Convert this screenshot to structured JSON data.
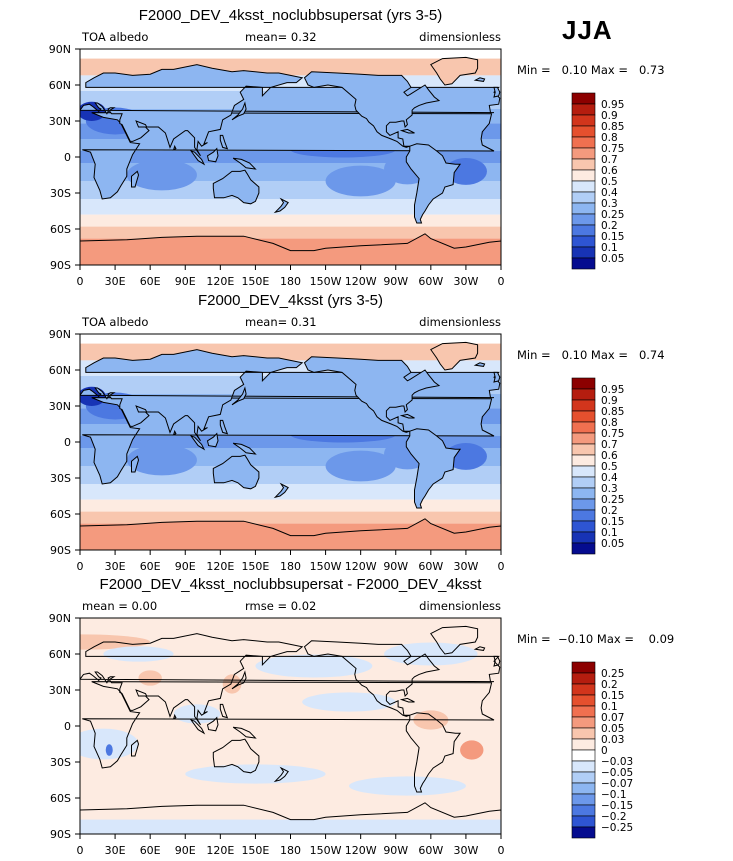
{
  "season_label": "JJA",
  "panels": [
    {
      "title": "F2000_DEV_4ksst_noclubbsupersat (yrs 3-5)",
      "left_label": "TOA albedo",
      "middle_label": "mean=    0.32",
      "right_label": "dimensionless",
      "minmax": "Min =   0.10 Max =   0.73",
      "colorbar_labels": [
        "0.95",
        "0.9",
        "0.85",
        "0.8",
        "0.75",
        "0.7",
        "0.6",
        "0.5",
        "0.4",
        "0.3",
        "0.25",
        "0.2",
        "0.15",
        "0.1",
        "0.05"
      ],
      "colorbar_colors": [
        "#8c0000",
        "#b51d0f",
        "#d2351c",
        "#e5502e",
        "#f07050",
        "#f49a7e",
        "#f8c6ae",
        "#fdebe1",
        "#d8e7fb",
        "#b1cef6",
        "#8db6f1",
        "#6c98ea",
        "#4c78e1",
        "#2e55d3",
        "#1733b5",
        "#050c8f"
      ]
    },
    {
      "title": "F2000_DEV_4ksst (yrs 3-5)",
      "left_label": "TOA albedo",
      "middle_label": "mean=    0.31",
      "right_label": "dimensionless",
      "minmax": "Min =   0.10 Max =   0.74",
      "colorbar_labels": [
        "0.95",
        "0.9",
        "0.85",
        "0.8",
        "0.75",
        "0.7",
        "0.6",
        "0.5",
        "0.4",
        "0.3",
        "0.25",
        "0.2",
        "0.15",
        "0.1",
        "0.05"
      ],
      "colorbar_colors": [
        "#8c0000",
        "#b51d0f",
        "#d2351c",
        "#e5502e",
        "#f07050",
        "#f49a7e",
        "#f8c6ae",
        "#fdebe1",
        "#d8e7fb",
        "#b1cef6",
        "#8db6f1",
        "#6c98ea",
        "#4c78e1",
        "#2e55d3",
        "#1733b5",
        "#050c8f"
      ]
    },
    {
      "title": "F2000_DEV_4ksst_noclubbsupersat - F2000_DEV_4ksst",
      "left_label": "mean =    0.00",
      "middle_label": "rmse =    0.02",
      "right_label": "dimensionless",
      "minmax": "Min =  −0.10 Max =    0.09",
      "colorbar_labels": [
        "0.25",
        "0.2",
        "0.15",
        "0.1",
        "0.07",
        "0.05",
        "0.03",
        "0",
        "−0.03",
        "−0.05",
        "−0.07",
        "−0.1",
        "−0.15",
        "−0.2",
        "−0.25"
      ],
      "colorbar_colors": [
        "#8c0000",
        "#b51d0f",
        "#d2351c",
        "#e5502e",
        "#f07050",
        "#f49a7e",
        "#f8c6ae",
        "#fdebe1",
        "#ffffff",
        "#d8e7fb",
        "#b1cef6",
        "#8db6f1",
        "#6c98ea",
        "#4c78e1",
        "#2e55d3",
        "#050c8f"
      ]
    }
  ],
  "x_ticks": [
    "0",
    "30E",
    "60E",
    "90E",
    "120E",
    "150E",
    "180",
    "150W",
    "120W",
    "90W",
    "60W",
    "30W",
    "0"
  ],
  "y_ticks": [
    "90N",
    "60N",
    "30N",
    "0",
    "30S",
    "60S",
    "90S"
  ],
  "colors": {
    "ocean_low": "#4c78e1",
    "ocean_mid": "#8db6f1",
    "land_high": "#f8c6ae",
    "diff_pos": "#f8c6ae",
    "diff_neg": "#d8e7fb"
  }
}
